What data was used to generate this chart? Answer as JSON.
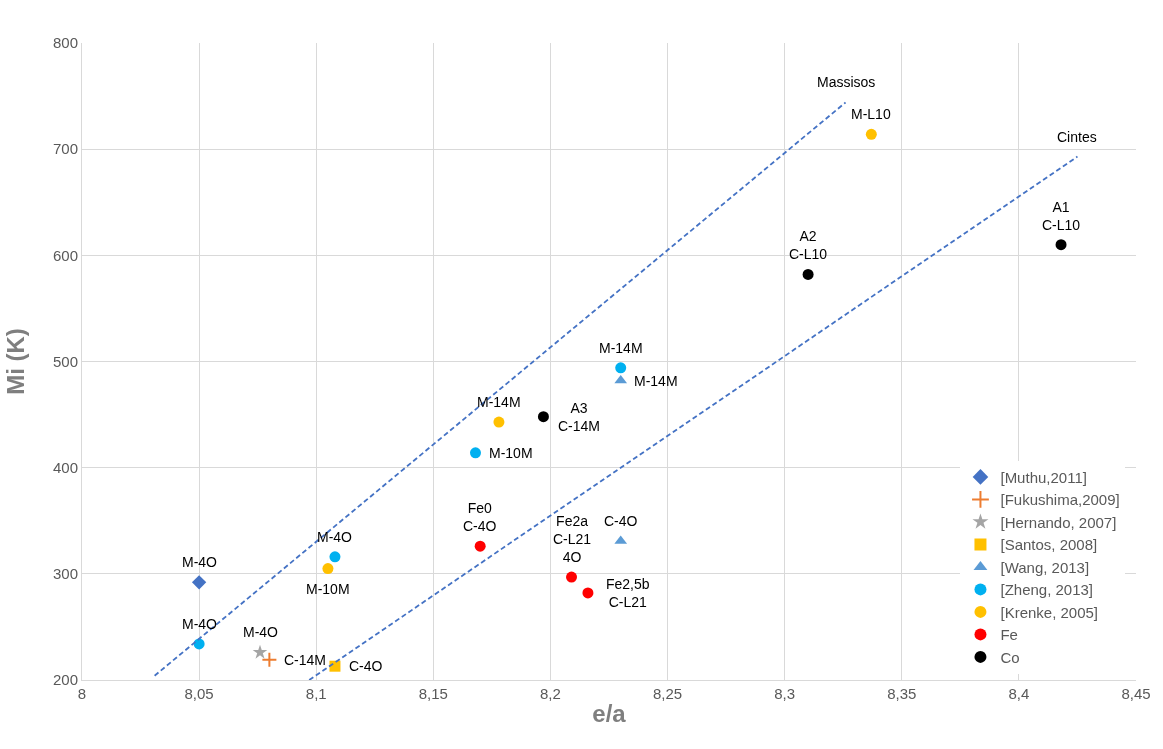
{
  "chart_data": {
    "type": "scatter",
    "xlabel": "e/a",
    "ylabel": "Mi (K)",
    "xlim": [
      8,
      8.45
    ],
    "ylim": [
      200,
      800
    ],
    "xticks": [
      8,
      {
        "value": 8.05,
        "label": "8,05"
      },
      {
        "value": 8.1,
        "label": "8,1"
      },
      {
        "value": 8.15,
        "label": "8,15"
      },
      {
        "value": 8.2,
        "label": "8,2"
      },
      {
        "value": 8.25,
        "label": "8,25"
      },
      {
        "value": 8.3,
        "label": "8,3"
      },
      {
        "value": 8.35,
        "label": "8,35"
      },
      {
        "value": 8.4,
        "label": "8,4"
      },
      {
        "value": 8.45,
        "label": "8,45"
      }
    ],
    "yticks": [
      200,
      300,
      400,
      500,
      600,
      700,
      800
    ],
    "grid": true,
    "legend": "bottom right",
    "series": [
      {
        "name": "[Muthu,2011]",
        "color": "#4472c4",
        "marker": "diamond",
        "x": [
          8.05
        ],
        "values": [
          292
        ]
      },
      {
        "name": "[Fukushima,2009]",
        "color": "#ed7d31",
        "marker": "cross",
        "x": [
          8.08
        ],
        "values": [
          219
        ]
      },
      {
        "name": "[Hernando, 2007]",
        "color": "#a5a5a5",
        "marker": "star",
        "x": [
          8.076
        ],
        "values": [
          226
        ]
      },
      {
        "name": "[Santos, 2008]",
        "color": "#ffc000",
        "marker": "square",
        "x": [
          8.108
        ],
        "values": [
          213
        ]
      },
      {
        "name": "[Wang, 2013]",
        "color": "#5b9bd5",
        "marker": "triangle",
        "x": [
          8.23,
          8.23
        ],
        "values": [
          482,
          331
        ]
      },
      {
        "name": "[Zheng, 2013]",
        "color": "#00b0f0",
        "marker": "circle",
        "x": [
          8.05,
          8.108,
          8.168,
          8.23
        ],
        "values": [
          234,
          316,
          414,
          494
        ]
      },
      {
        "name": "[Krenke, 2005]",
        "color": "#ffc000",
        "marker": "circle",
        "x": [
          8.105,
          8.178,
          8.337
        ],
        "values": [
          305,
          443,
          714
        ]
      },
      {
        "name": "Fe",
        "color": "#ff0000",
        "marker": "circle",
        "x": [
          8.17,
          8.209,
          8.216
        ],
        "values": [
          326,
          297,
          282
        ]
      },
      {
        "name": "Co",
        "color": "#000000",
        "marker": "circle",
        "x": [
          8.197,
          8.31,
          8.418
        ],
        "values": [
          448,
          582,
          610
        ]
      },
      {
        "type": "line",
        "color": "#4472c4",
        "marker": "none",
        "line_style": "dashed",
        "x": [
          8.031,
          8.326
        ],
        "values": [
          204,
          744
        ]
      },
      {
        "type": "line",
        "color": "#4472c4",
        "marker": "none",
        "line_style": "dashed",
        "x": [
          8.097,
          8.425
        ],
        "values": [
          200,
          693
        ]
      }
    ],
    "annotations": [
      {
        "text": "M-4O",
        "x": 8.05,
        "y": 292
      },
      {
        "text": "M-4O",
        "x": 8.05,
        "y": 234
      },
      {
        "text": "M-4O",
        "x": 8.076,
        "y": 226
      },
      {
        "text": "C-14M",
        "x": 8.08,
        "y": 219
      },
      {
        "text": "C-4O",
        "x": 8.108,
        "y": 213
      },
      {
        "text": "M-4O",
        "x": 8.108,
        "y": 316
      },
      {
        "text": "M-10M",
        "x": 8.105,
        "y": 305
      },
      {
        "text": "Fe0\nC-4O",
        "x": 8.17,
        "y": 326
      },
      {
        "text": "Fe2a\nC-L21\n4O",
        "x": 8.209,
        "y": 297
      },
      {
        "text": "Fe2,5b\nC-L21",
        "x": 8.216,
        "y": 282
      },
      {
        "text": "C-4O",
        "x": 8.23,
        "y": 331
      },
      {
        "text": "M-14M",
        "x": 8.23,
        "y": 494
      },
      {
        "text": "M-14M",
        "x": 8.23,
        "y": 482
      },
      {
        "text": "M-14M",
        "x": 8.178,
        "y": 443
      },
      {
        "text": "M-10M",
        "x": 8.168,
        "y": 414
      },
      {
        "text": "A3\nC-14M",
        "x": 8.197,
        "y": 448
      },
      {
        "text": "M-L10",
        "x": 8.337,
        "y": 714
      },
      {
        "text": "A2\nC-L10",
        "x": 8.31,
        "y": 582
      },
      {
        "text": "A1\nC-L10",
        "x": 8.418,
        "y": 610
      },
      {
        "text": "Massisos",
        "x": 8.326,
        "y": 744
      },
      {
        "text": "Cintes",
        "x": 8.425,
        "y": 693
      }
    ]
  }
}
